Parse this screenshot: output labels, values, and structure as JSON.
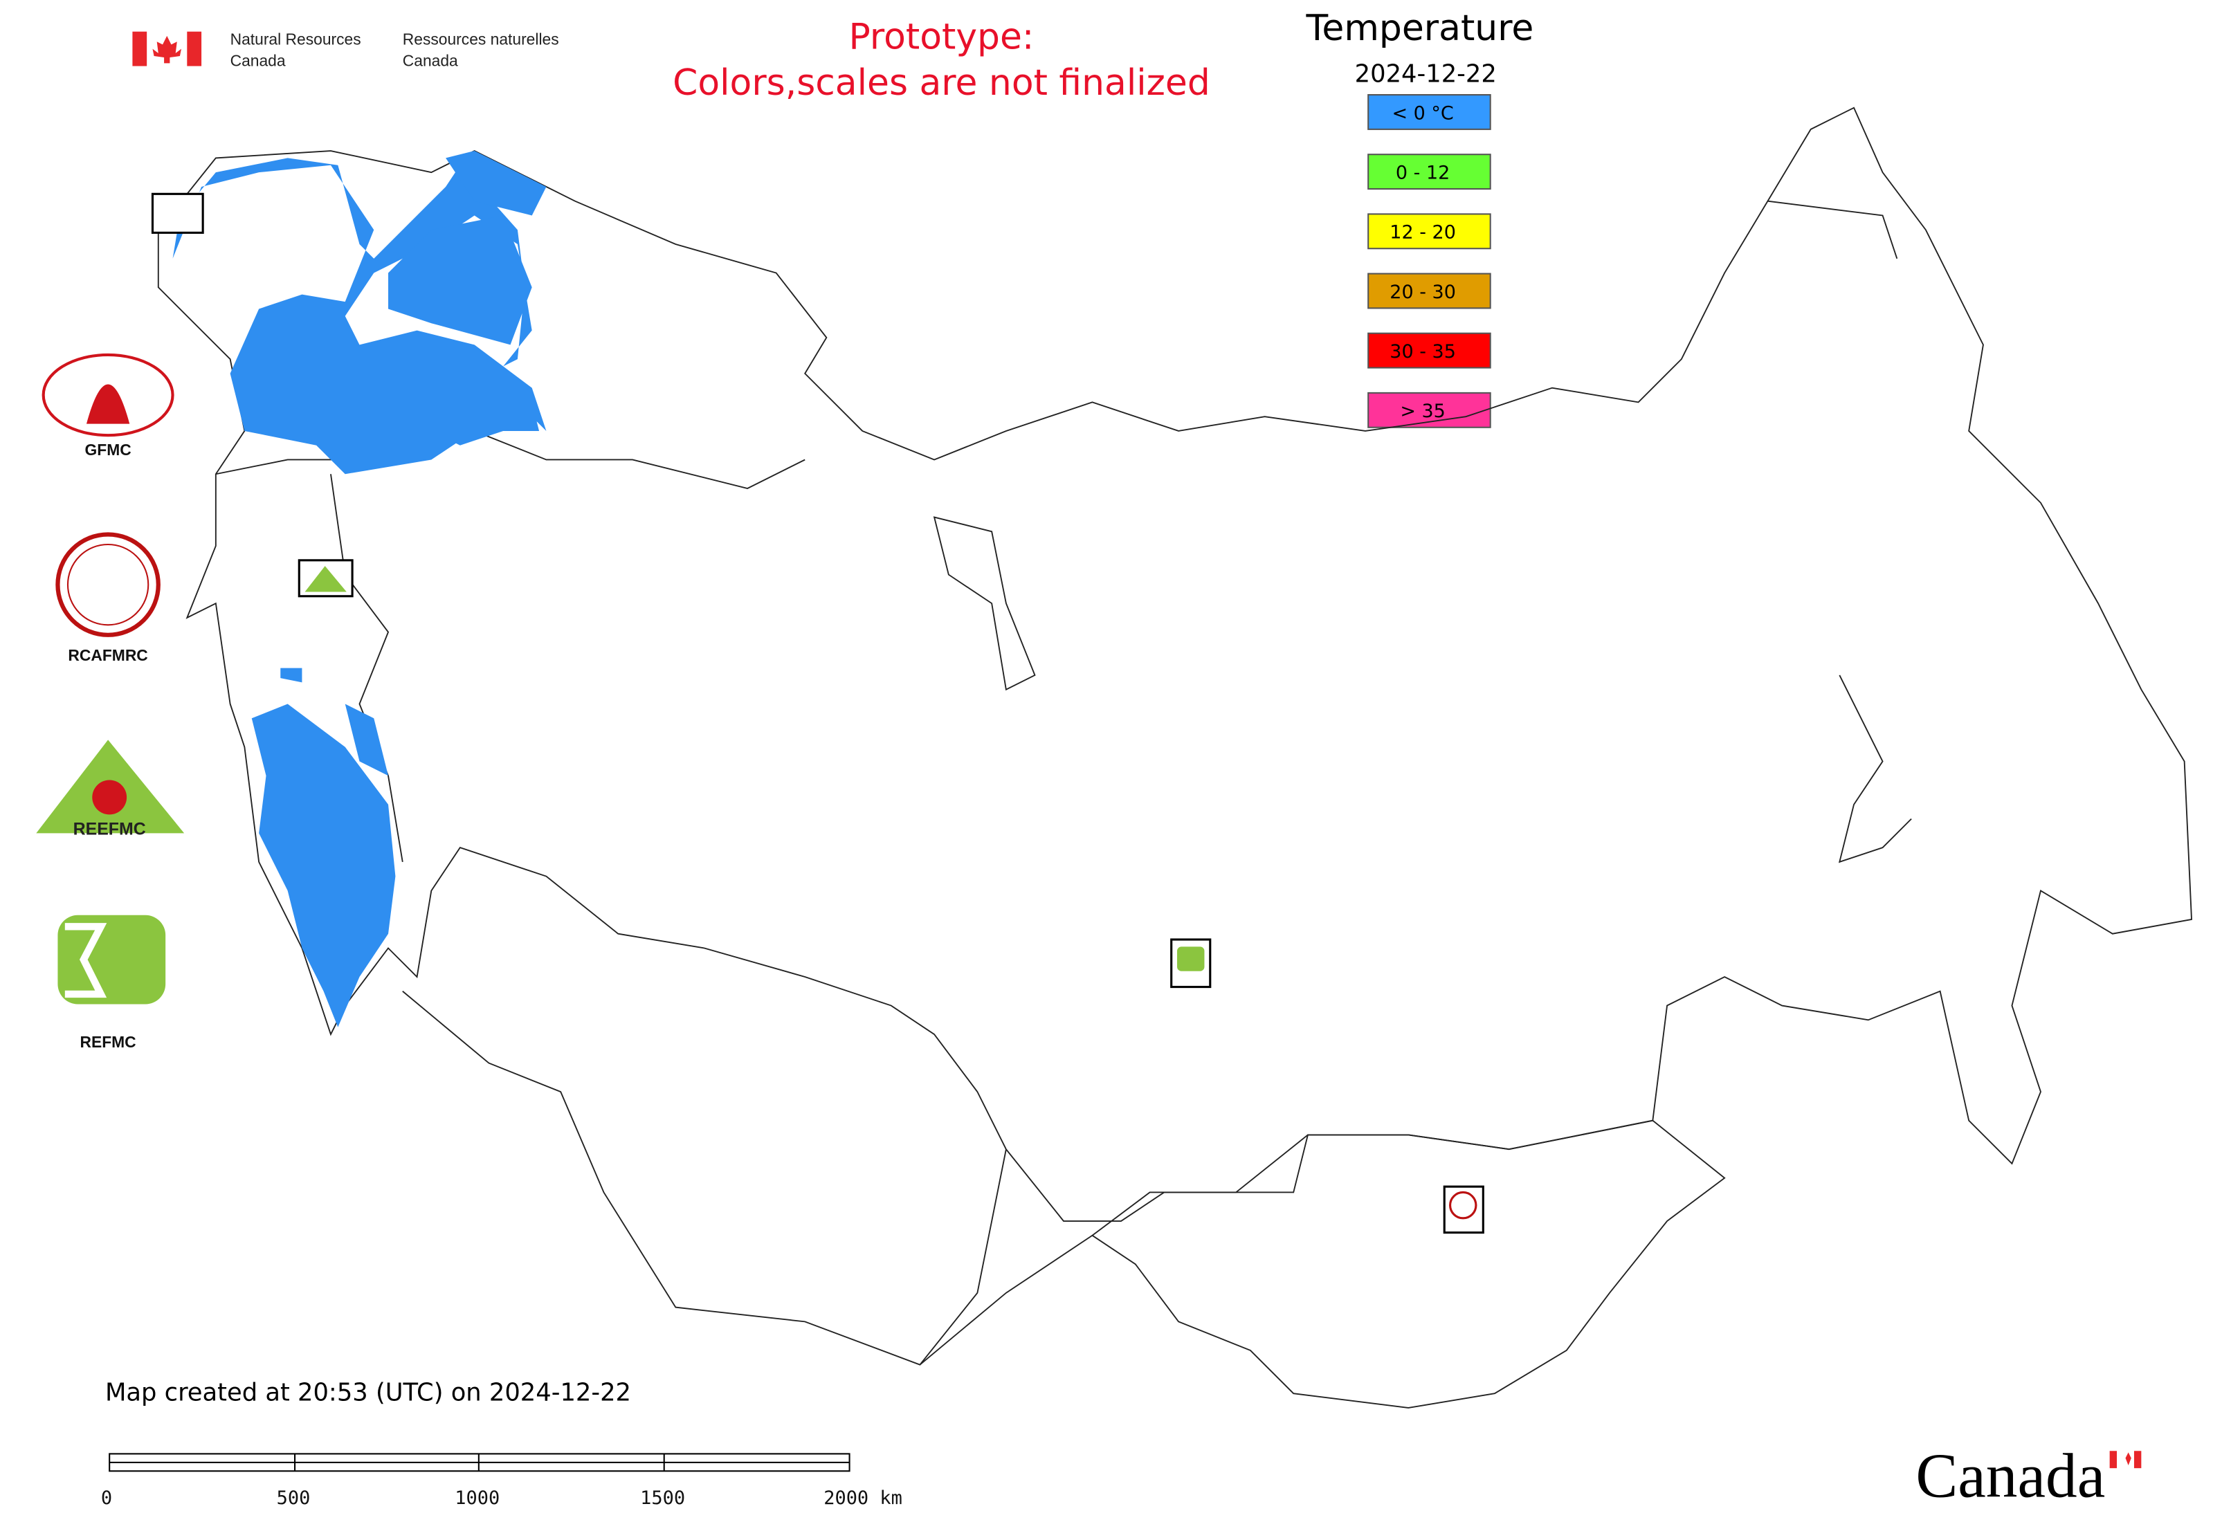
{
  "agency": {
    "en_line1": "Natural Resources",
    "en_line2": "Canada",
    "fr_line1": "Ressources naturelles",
    "fr_line2": "Canada"
  },
  "notice": {
    "line1": "Prototype:",
    "line2": "Colors,scales are not finalized"
  },
  "legend": {
    "title": "Temperature",
    "date": "2024-12-22",
    "items": [
      {
        "label": "< 0 °C",
        "color": "#3399ff"
      },
      {
        "label": "0 - 12",
        "color": "#66ff33"
      },
      {
        "label": "12 - 20",
        "color": "#ffff00"
      },
      {
        "label": "20 - 30",
        "color": "#e09c00"
      },
      {
        "label": "30 - 35",
        "color": "#ff0000"
      },
      {
        "label": "> 35",
        "color": "#ff3399"
      }
    ]
  },
  "logos": [
    "GFMC",
    "RCAFMRC",
    "REEFMC",
    "REFMC"
  ],
  "footer": "Map created at 20:53 (UTC) on 2024-12-22",
  "scale_bar": {
    "ticks": [
      "0",
      "500",
      "1000",
      "1500",
      "2000 km"
    ]
  },
  "wordmark": "Canada"
}
